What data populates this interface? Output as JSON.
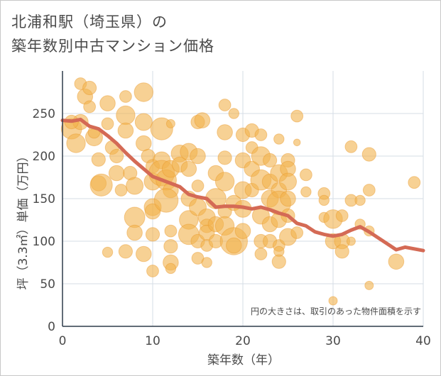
{
  "chart_title": {
    "line1": "北浦和駅（埼玉県）の",
    "line2": "築年数別中古マンション価格"
  },
  "colors": {
    "bubble": "#f2b24d",
    "line": "#d46a55",
    "grid": "#d6dde6",
    "plot_bg": "#ffffff"
  },
  "chart_data": {
    "type": "scatter",
    "title": "北浦和駅（埼玉県）の 築年数別中古マンション価格",
    "xlabel": "築年数（年）",
    "ylabel": "坪（3.3㎡）単価（万円）",
    "xlim": [
      0,
      40
    ],
    "ylim": [
      0,
      300
    ],
    "x_ticks": [
      0,
      10,
      20,
      30,
      40
    ],
    "y_ticks": [
      0,
      50,
      100,
      150,
      200,
      250
    ],
    "grid": true,
    "annotation": "円の大きさは、取引のあった物件面積を示す",
    "series": [
      {
        "type": "bubble",
        "points": [
          [
            1,
            232,
            1.2
          ],
          [
            1.5,
            215,
            1.1
          ],
          [
            2,
            285,
            0.7
          ],
          [
            2.5,
            270,
            0.9
          ],
          [
            3,
            280,
            0.8
          ],
          [
            3,
            258,
            0.7
          ],
          [
            2,
            240,
            0.9
          ],
          [
            1,
            240,
            0.8
          ],
          [
            3.5,
            222,
            1.0
          ],
          [
            3.5,
            228,
            0.7
          ],
          [
            4,
            196,
            0.8
          ],
          [
            4,
            168,
            0.9
          ],
          [
            4.3,
            166,
            1.3
          ],
          [
            5,
            262,
            0.9
          ],
          [
            5,
            238,
            0.7
          ],
          [
            5.5,
            210,
            0.8
          ],
          [
            6,
            180,
            0.9
          ],
          [
            6,
            200,
            0.8
          ],
          [
            6.5,
            160,
            0.7
          ],
          [
            7,
            270,
            0.7
          ],
          [
            7,
            248,
            1.1
          ],
          [
            7,
            230,
            0.9
          ],
          [
            7.5,
            180,
            0.8
          ],
          [
            8,
            165,
            1.0
          ],
          [
            8,
            128,
            1.2
          ],
          [
            8,
            110,
            0.9
          ],
          [
            7,
            88,
            0.8
          ],
          [
            5,
            87,
            0.6
          ],
          [
            9,
            275,
            1.1
          ],
          [
            9,
            240,
            1.0
          ],
          [
            9,
            215,
            0.9
          ],
          [
            9.5,
            200,
            0.8
          ],
          [
            10,
            188,
            0.8
          ],
          [
            10,
            170,
            1.0
          ],
          [
            10,
            140,
            1.0
          ],
          [
            10,
            135,
            0.9
          ],
          [
            10,
            108,
            0.8
          ],
          [
            9,
            85,
            0.9
          ],
          [
            10,
            65,
            0.7
          ],
          [
            11,
            232,
            1.3
          ],
          [
            11,
            195,
            1.0
          ],
          [
            11,
            180,
            1.5
          ],
          [
            11.5,
            172,
            1.2
          ],
          [
            12,
            185,
            1.0
          ],
          [
            12,
            160,
            0.9
          ],
          [
            11.5,
            148,
            1.4
          ],
          [
            12,
            112,
            0.7
          ],
          [
            12,
            94,
            0.8
          ],
          [
            12,
            75,
            0.9
          ],
          [
            12,
            68,
            0.6
          ],
          [
            12,
            238,
            0.5
          ],
          [
            13,
            203,
            1.0
          ],
          [
            13,
            190,
            0.9
          ],
          [
            14,
            205,
            1.0
          ],
          [
            14,
            185,
            0.9
          ],
          [
            14,
            150,
            0.9
          ],
          [
            14,
            125,
            1.1
          ],
          [
            14,
            108,
            1.2
          ],
          [
            15,
            240,
            0.8
          ],
          [
            15,
            200,
            0.9
          ],
          [
            15,
            165,
            0.7
          ],
          [
            15,
            140,
            1.0
          ],
          [
            15,
            100,
            0.8
          ],
          [
            15,
            80,
            0.7
          ],
          [
            15.5,
            242,
            0.9
          ],
          [
            16,
            128,
            1.0
          ],
          [
            16,
            118,
            0.8
          ],
          [
            16,
            110,
            0.9
          ],
          [
            16,
            95,
            0.7
          ],
          [
            16,
            75,
            0.6
          ],
          [
            17,
            180,
            0.9
          ],
          [
            17,
            150,
            1.2
          ],
          [
            17,
            120,
            0.9
          ],
          [
            17,
            100,
            0.8
          ],
          [
            18,
            260,
            0.7
          ],
          [
            18,
            228,
            0.9
          ],
          [
            18,
            198,
            0.8
          ],
          [
            18,
            170,
            1.1
          ],
          [
            18,
            135,
            0.8
          ],
          [
            18,
            118,
            1.1
          ],
          [
            19,
            250,
            0.6
          ],
          [
            19,
            145,
            0.9
          ],
          [
            19,
            100,
            1.6
          ],
          [
            19,
            95,
            0.9
          ],
          [
            20,
            225,
            0.8
          ],
          [
            20,
            195,
            0.9
          ],
          [
            20,
            160,
            1.0
          ],
          [
            20,
            138,
            1.0
          ],
          [
            20,
            112,
            0.9
          ],
          [
            21,
            230,
            0.8
          ],
          [
            21,
            210,
            0.7
          ],
          [
            21,
            185,
            0.9
          ],
          [
            21,
            160,
            0.8
          ],
          [
            22,
            225,
            0.7
          ],
          [
            22,
            200,
            1.1
          ],
          [
            22,
            172,
            1.2
          ],
          [
            22,
            130,
            1.0
          ],
          [
            22,
            100,
            0.8
          ],
          [
            22,
            85,
            0.7
          ],
          [
            23,
            195,
            0.8
          ],
          [
            23,
            170,
            0.9
          ],
          [
            23,
            150,
            1.0
          ],
          [
            23,
            120,
            0.9
          ],
          [
            23,
            100,
            0.8
          ],
          [
            24,
            220,
            0.6
          ],
          [
            24,
            180,
            1.0
          ],
          [
            24,
            160,
            0.9
          ],
          [
            24,
            145,
            1.4
          ],
          [
            24,
            125,
            0.9
          ],
          [
            24,
            95,
            0.7
          ],
          [
            24,
            88,
            0.6
          ],
          [
            24,
            76,
            0.8
          ],
          [
            25,
            195,
            0.8
          ],
          [
            25,
            185,
            0.9
          ],
          [
            25,
            170,
            1.0
          ],
          [
            25,
            150,
            0.9
          ],
          [
            25,
            130,
            0.8
          ],
          [
            25,
            105,
            1.0
          ],
          [
            26,
            247,
            0.7
          ],
          [
            26,
            216,
            0.4
          ],
          [
            26,
            110,
            0.7
          ],
          [
            27,
            178,
            0.7
          ],
          [
            27,
            158,
            0.6
          ],
          [
            29,
            156,
            0.7
          ],
          [
            29,
            148,
            0.6
          ],
          [
            29,
            128,
            0.6
          ],
          [
            30,
            126,
            1.1
          ],
          [
            30,
            100,
            0.9
          ],
          [
            30,
            30,
            0.5
          ],
          [
            31,
            100,
            0.9
          ],
          [
            31,
            88,
            0.8
          ],
          [
            31,
            130,
            0.7
          ],
          [
            32,
            211,
            0.7
          ],
          [
            32,
            148,
            0.7
          ],
          [
            32,
            100,
            0.5
          ],
          [
            33,
            148,
            0.6
          ],
          [
            33,
            120,
            0.6
          ],
          [
            34,
            202,
            0.8
          ],
          [
            34,
            160,
            0.7
          ],
          [
            34,
            112,
            0.6
          ],
          [
            34,
            48,
            0.5
          ],
          [
            37,
            76,
            0.9
          ],
          [
            39,
            169,
            0.7
          ]
        ]
      },
      {
        "type": "line",
        "x": [
          0,
          1,
          2,
          3,
          4,
          5,
          6,
          7,
          8,
          9,
          10,
          11,
          12,
          13,
          14,
          15,
          16,
          17,
          18,
          19,
          20,
          21,
          22,
          23,
          24,
          25,
          26,
          27,
          28,
          29,
          30,
          31,
          32,
          33,
          34,
          35,
          36,
          37,
          38,
          39,
          40
        ],
        "y": [
          242,
          241,
          243,
          235,
          232,
          224,
          215,
          204,
          194,
          185,
          176,
          172,
          168,
          164,
          155,
          152,
          150,
          140,
          141,
          141,
          140,
          138,
          140,
          137,
          133,
          130,
          121,
          118,
          111,
          108,
          106,
          108,
          113,
          117,
          111,
          104,
          97,
          90,
          93,
          91,
          89
        ]
      }
    ]
  }
}
